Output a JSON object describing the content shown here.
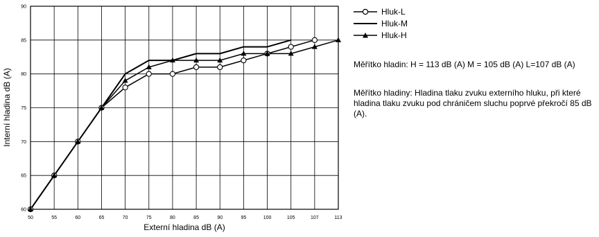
{
  "chart_data": {
    "type": "line",
    "categories": [
      "50",
      "55",
      "60",
      "65",
      "70",
      "75",
      "80",
      "85",
      "90",
      "95",
      "100",
      "105",
      "107",
      "113"
    ],
    "xlabel": "Externí hladina dB (A)",
    "ylabel": "Interní hladina dB (A)",
    "ylim": [
      60,
      90
    ],
    "yticks": [
      60,
      65,
      70,
      75,
      80,
      85,
      90
    ],
    "grid": true,
    "legend_position": "right",
    "series": [
      {
        "name": "Hluk-L",
        "marker": "open-circle",
        "values": [
          60,
          65,
          70,
          75,
          78,
          80,
          80,
          81,
          81,
          82,
          83,
          84,
          85,
          null
        ]
      },
      {
        "name": "Hluk-M",
        "marker": "none",
        "values": [
          60,
          65,
          70,
          75,
          80,
          82,
          82,
          83,
          83,
          84,
          84,
          85,
          null,
          null
        ]
      },
      {
        "name": "Hluk-H",
        "marker": "filled-triangle",
        "values": [
          60,
          65,
          70,
          75,
          79,
          81,
          82,
          82,
          82,
          83,
          83,
          83,
          84,
          85
        ]
      }
    ]
  },
  "notes": {
    "scale_values": "Měřítko hladin: H = 113 dB (A)  M = 105 dB (A)  L=107 dB (A)",
    "scale_definition": "Měřítko hladiny: Hladina tlaku zvuku externího hluku, při které hladina tlaku zvuku pod chráničem sluchu poprvé překročí 85 dB (A)."
  }
}
